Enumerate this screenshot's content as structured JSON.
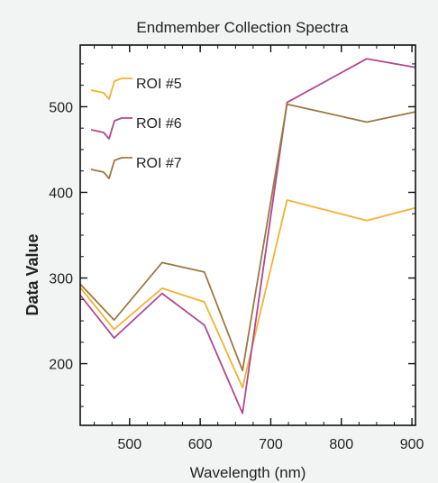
{
  "chart_data": {
    "type": "line",
    "title": "Endmember Collection Spectra",
    "xlabel": "Wavelength (nm)",
    "ylabel": "Data Value",
    "xlim": [
      430,
      905
    ],
    "ylim": [
      128,
      572
    ],
    "x_ticks": [
      500,
      600,
      700,
      800,
      900
    ],
    "y_ticks": [
      200,
      300,
      400,
      500
    ],
    "x_tick_labels": [
      "500",
      "600",
      "700",
      "800",
      "900"
    ],
    "y_tick_labels": [
      "200",
      "300",
      "400",
      "500"
    ],
    "grid": false,
    "legend_position": "top-left",
    "x": [
      430,
      478,
      546,
      606,
      660,
      723,
      836,
      905
    ],
    "series": [
      {
        "name": "ROI #5",
        "color": "#f2b233",
        "values": [
          289,
          240,
          288,
          272,
          172,
          391,
          367,
          382
        ]
      },
      {
        "name": "ROI #6",
        "color": "#b0498d",
        "values": [
          280,
          230,
          282,
          245,
          142,
          505,
          556,
          546
        ]
      },
      {
        "name": "ROI #7",
        "color": "#9a7a43",
        "values": [
          293,
          251,
          318,
          307,
          192,
          503,
          482,
          494
        ]
      }
    ]
  }
}
